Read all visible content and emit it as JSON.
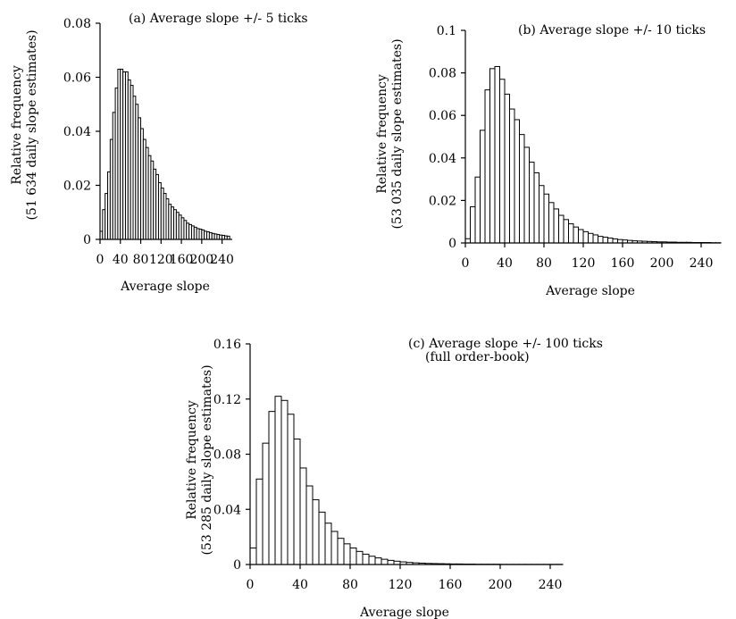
{
  "chart_data": [
    {
      "type": "bar",
      "title": "(a) Average slope +/- 5 ticks",
      "xlabel": "Average slope",
      "ylabel": [
        "Relative frequency",
        "(51 634 daily slope estimates)"
      ],
      "xlim": [
        0,
        260
      ],
      "ylim": [
        0,
        0.08
      ],
      "xticks": [
        0,
        40,
        80,
        120,
        160,
        200,
        240
      ],
      "yticks": [
        0,
        0.02,
        0.04,
        0.06,
        0.08
      ],
      "ytick_labels": [
        "0",
        "0.02",
        "0.04",
        "0.06",
        "0.08"
      ],
      "bin_width": 5,
      "x_start": 0,
      "values": [
        0.003,
        0.011,
        0.017,
        0.025,
        0.037,
        0.047,
        0.056,
        0.063,
        0.063,
        0.062,
        0.062,
        0.059,
        0.057,
        0.053,
        0.05,
        0.045,
        0.041,
        0.037,
        0.034,
        0.031,
        0.029,
        0.026,
        0.024,
        0.021,
        0.019,
        0.017,
        0.015,
        0.013,
        0.012,
        0.011,
        0.01,
        0.009,
        0.008,
        0.007,
        0.006,
        0.0055,
        0.005,
        0.0045,
        0.004,
        0.0038,
        0.0035,
        0.003,
        0.0028,
        0.0025,
        0.0022,
        0.002,
        0.0018,
        0.0016,
        0.0015,
        0.0013,
        0.0012
      ]
    },
    {
      "type": "bar",
      "title": "(b) Average slope +/- 10 ticks",
      "xlabel": "Average slope",
      "ylabel": [
        "Relative frequency",
        "(53 035 daily slope estimates)"
      ],
      "xlim": [
        0,
        260
      ],
      "ylim": [
        0,
        0.1
      ],
      "xticks": [
        0,
        40,
        80,
        120,
        160,
        200,
        240
      ],
      "yticks": [
        0,
        0.02,
        0.04,
        0.06,
        0.08,
        0.1
      ],
      "ytick_labels": [
        "0",
        "0.02",
        "0.04",
        "0.06",
        "0.08",
        "0.1"
      ],
      "bin_width": 5,
      "x_start": 0,
      "values": [
        0.002,
        0.017,
        0.031,
        0.053,
        0.072,
        0.082,
        0.083,
        0.077,
        0.07,
        0.063,
        0.058,
        0.051,
        0.045,
        0.038,
        0.033,
        0.027,
        0.023,
        0.019,
        0.016,
        0.013,
        0.011,
        0.009,
        0.0075,
        0.0063,
        0.0053,
        0.0045,
        0.0038,
        0.0031,
        0.0027,
        0.0023,
        0.0019,
        0.0016,
        0.0014,
        0.0012,
        0.001,
        0.0009,
        0.0008,
        0.0007,
        0.0006,
        0.0005,
        0.0005,
        0.0004,
        0.0004,
        0.0003,
        0.0003,
        0.0003,
        0.0002,
        0.0002,
        0.0002,
        0.0002,
        0.0001,
        0.0001
      ]
    },
    {
      "type": "bar",
      "title": [
        "(c) Average slope +/- 100 ticks",
        "(full order-book)"
      ],
      "xlabel": "Average slope",
      "ylabel": [
        "Relative frequency",
        "(53 285 daily slope estimates)"
      ],
      "xlim": [
        0,
        250
      ],
      "ylim": [
        0,
        0.16
      ],
      "xticks": [
        0,
        40,
        80,
        120,
        160,
        200,
        240
      ],
      "yticks": [
        0,
        0.04,
        0.08,
        0.12,
        0.16
      ],
      "ytick_labels": [
        "0",
        "0.04",
        "0.08",
        "0.12",
        "0.16"
      ],
      "bin_width": 5,
      "x_start": 0,
      "values": [
        0.012,
        0.062,
        0.088,
        0.111,
        0.122,
        0.119,
        0.109,
        0.091,
        0.07,
        0.057,
        0.047,
        0.038,
        0.03,
        0.024,
        0.019,
        0.015,
        0.012,
        0.0095,
        0.0075,
        0.006,
        0.0048,
        0.0038,
        0.003,
        0.0024,
        0.0019,
        0.0015,
        0.0012,
        0.001,
        0.0008,
        0.0007,
        0.0006,
        0.0005,
        0.0004,
        0.0004,
        0.0003,
        0.0003,
        0.0002,
        0.0002,
        0.0002,
        0.0002,
        0.0001,
        0.0001,
        0.0001,
        0.0001,
        0.0001,
        0.0001,
        0.0001,
        0.0001,
        0.0001,
        0.0001
      ]
    }
  ]
}
